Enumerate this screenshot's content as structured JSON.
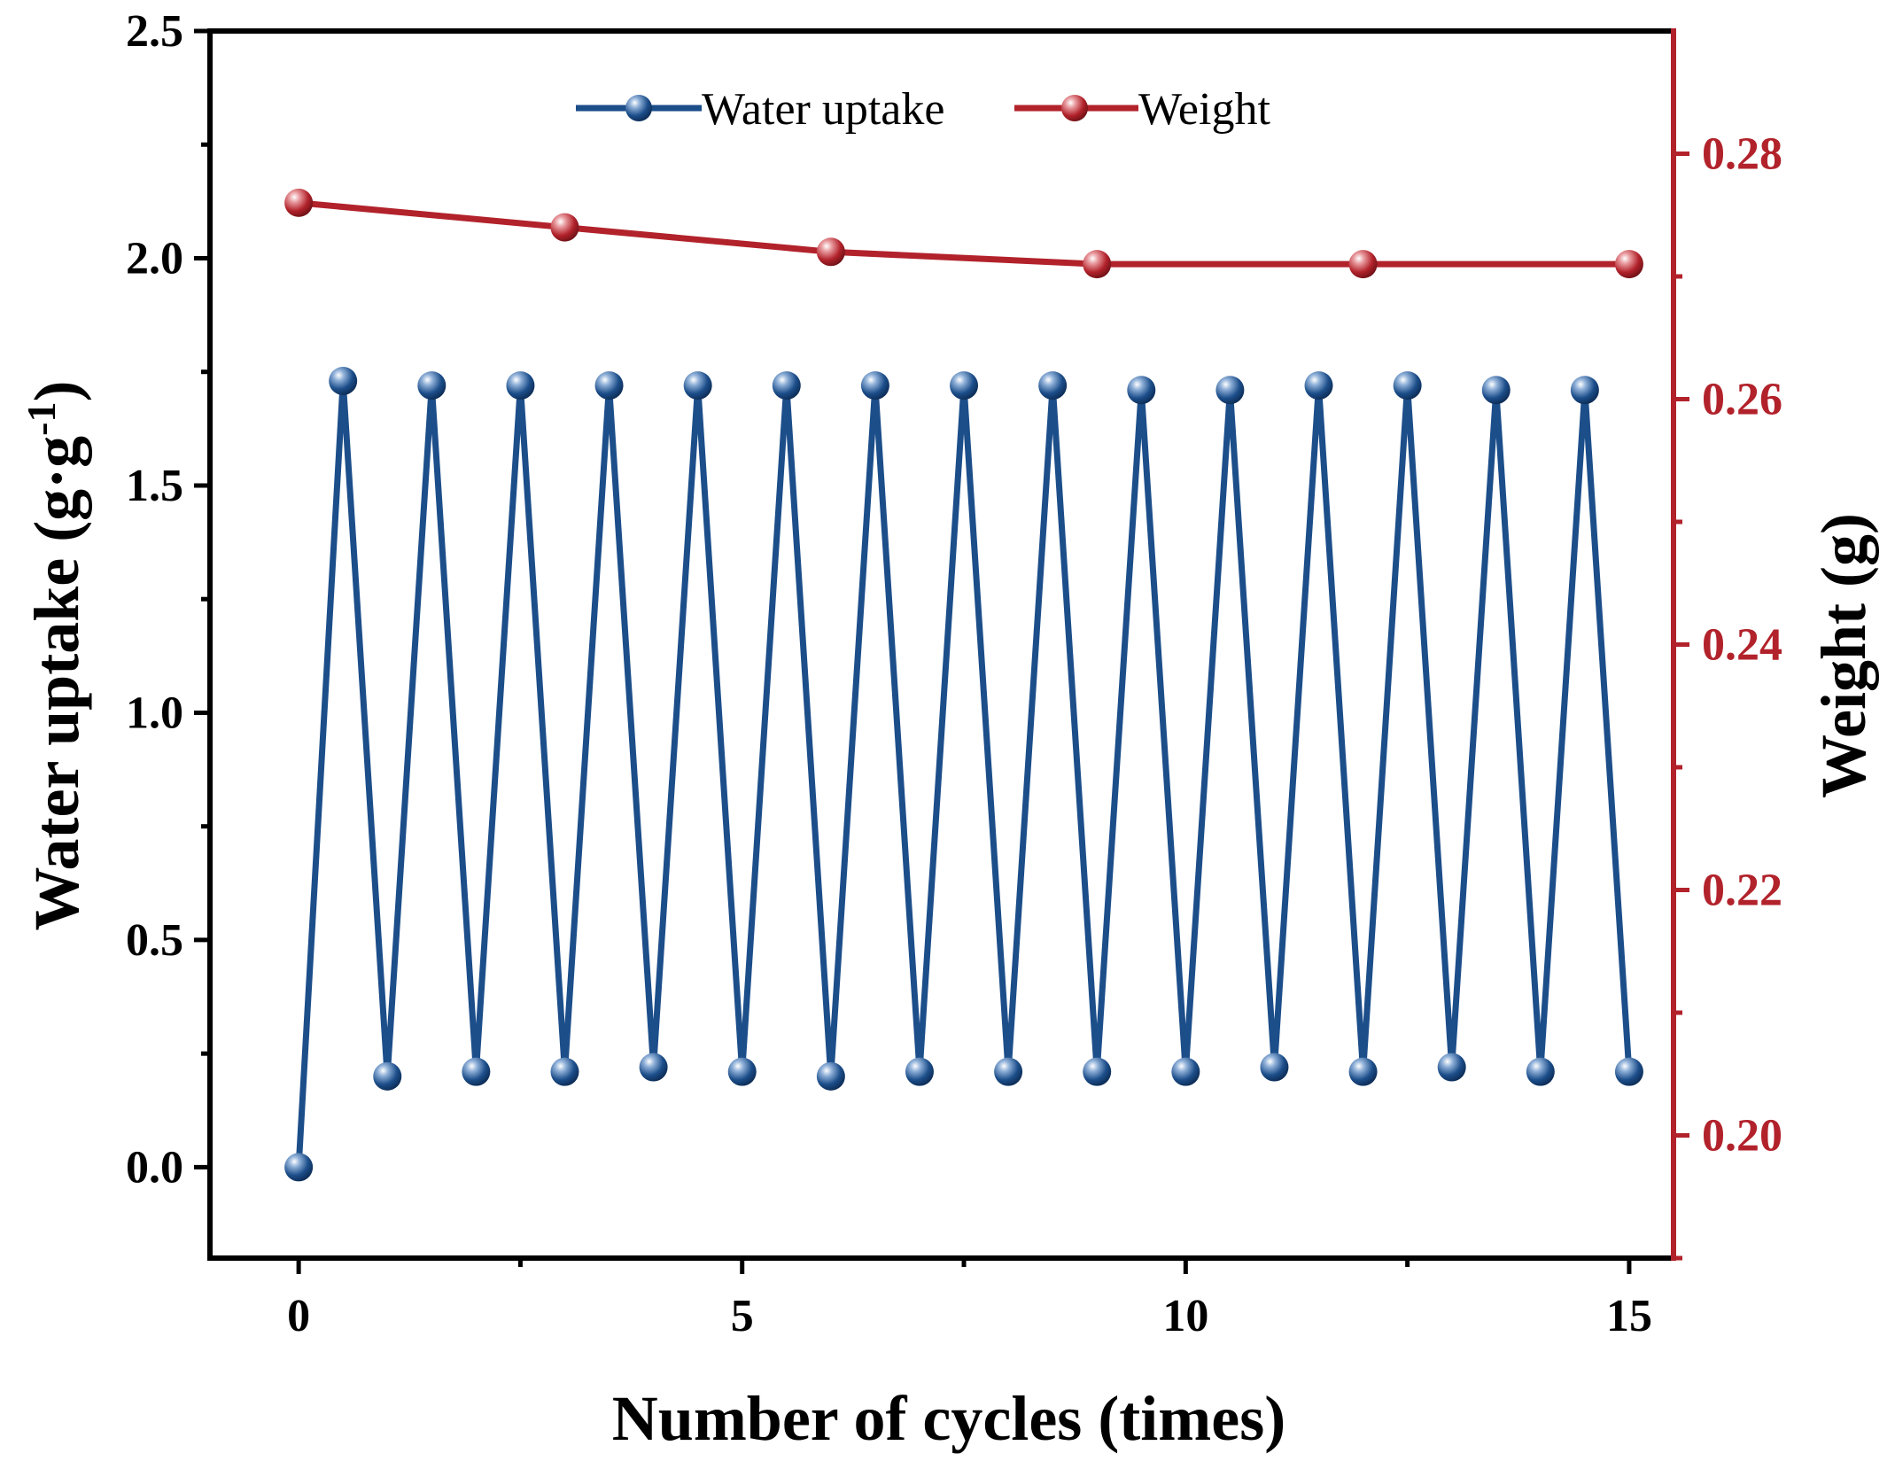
{
  "chart_data": {
    "type": "line",
    "title": "",
    "xlabel": "Number of cycles (times)",
    "ylabel": {
      "main": "Water uptake (g·g",
      "sup": "-1",
      "end": ")"
    },
    "y2label": "Weight (g)",
    "xlim": [
      -1,
      15.5
    ],
    "ylim": [
      -0.2,
      2.5
    ],
    "y2lim": [
      0.19,
      0.29
    ],
    "xticks": [
      "0",
      "5",
      "10",
      "15"
    ],
    "xtick_values": [
      0,
      5,
      10,
      15
    ],
    "yticks": [
      "0.0",
      "0.5",
      "1.0",
      "1.5",
      "2.0",
      "2.5"
    ],
    "ytick_values": [
      0.0,
      0.5,
      1.0,
      1.5,
      2.0,
      2.5
    ],
    "y2ticks": [
      "0.20",
      "0.22",
      "0.24",
      "0.26",
      "0.28"
    ],
    "y2tick_values": [
      0.2,
      0.22,
      0.24,
      0.26,
      0.28
    ],
    "legend_position": "top-center",
    "colors": {
      "water": "#1c4e8a",
      "weight": "#b2222b",
      "axis_left": "#000000",
      "axis_right": "#b2222b"
    },
    "series": [
      {
        "name": "Water uptake",
        "axis": "left",
        "x": [
          0,
          0.5,
          1,
          1.5,
          2,
          2.5,
          3,
          3.5,
          4,
          4.5,
          5,
          5.5,
          6,
          6.5,
          7,
          7.5,
          8,
          8.5,
          9,
          9.5,
          10,
          10.5,
          11,
          11.5,
          12,
          12.5,
          13,
          13.5,
          14,
          14.5,
          15
        ],
        "values": [
          0.0,
          1.73,
          0.2,
          1.72,
          0.21,
          1.72,
          0.21,
          1.72,
          0.22,
          1.72,
          0.21,
          1.72,
          0.2,
          1.72,
          0.21,
          1.72,
          0.21,
          1.72,
          0.21,
          1.71,
          0.21,
          1.71,
          0.22,
          1.72,
          0.21,
          1.72,
          0.22,
          1.71,
          0.21,
          1.71,
          0.21
        ]
      },
      {
        "name": "Weight",
        "axis": "right",
        "x": [
          0,
          3,
          6,
          9,
          12,
          15
        ],
        "values": [
          0.276,
          0.274,
          0.272,
          0.271,
          0.271,
          0.271
        ]
      }
    ]
  }
}
